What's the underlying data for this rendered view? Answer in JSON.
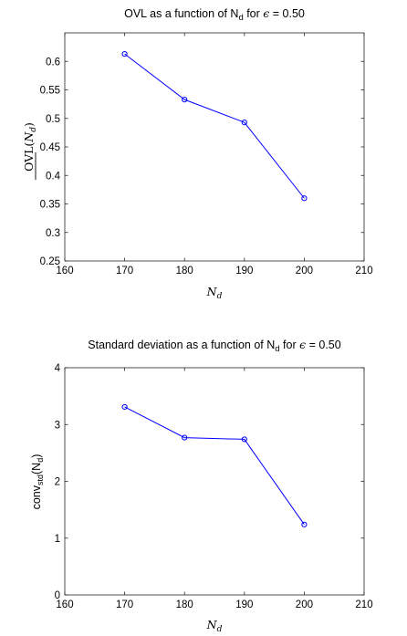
{
  "chart_data": [
    {
      "type": "line",
      "title": {
        "pre": "OVL as a function of N",
        "sub": "d",
        "mid": " for ",
        "greek": "ϵ",
        "post": " = 0.50"
      },
      "xlabel": {
        "main": "N",
        "sub": "d"
      },
      "ylabel": {
        "prefix": "OVL",
        "open": "(",
        "var": "N",
        "sub": "d",
        "close": ")"
      },
      "xlim": [
        160,
        210
      ],
      "ylim": [
        0.25,
        0.65
      ],
      "xticks": [
        "160",
        "170",
        "180",
        "190",
        "200",
        "210"
      ],
      "yticks": [
        "0.25",
        "0.3",
        "0.35",
        "0.4",
        "0.45",
        "0.5",
        "0.55",
        "0.6"
      ],
      "x": [
        170,
        180,
        190,
        200
      ],
      "y": [
        0.613,
        0.533,
        0.493,
        0.36
      ],
      "color": "#0000ff",
      "marker": "circle",
      "grid": false
    },
    {
      "type": "line",
      "title": {
        "pre": "Standard deviation as a function of N",
        "sub": "d",
        "mid": " for ",
        "greek": "ϵ",
        "post": " = 0.50"
      },
      "xlabel": {
        "main": "N",
        "sub": "d"
      },
      "ylabel": {
        "a": "conv",
        "asub": "std",
        "b": "(N",
        "bsub": "d",
        "c": ")"
      },
      "xlim": [
        160,
        210
      ],
      "ylim": [
        0,
        4
      ],
      "xticks": [
        "160",
        "170",
        "180",
        "190",
        "200",
        "210"
      ],
      "yticks": [
        "0",
        "1",
        "2",
        "3",
        "4"
      ],
      "x": [
        170,
        180,
        190,
        200
      ],
      "y": [
        3.31,
        2.77,
        2.74,
        1.24
      ],
      "color": "#0000ff",
      "marker": "circle",
      "grid": false
    }
  ]
}
